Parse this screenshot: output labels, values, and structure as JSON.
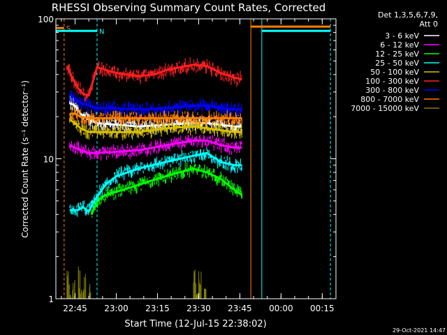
{
  "chart_data": {
    "type": "line",
    "title": "RHESSI Observing Summary Count Rates, Corrected",
    "xlabel": "Start Time (12-Jul-15 22:38:02)",
    "ylabel": "Corrected Count Rate (s⁻¹ detector⁻¹)",
    "yscale": "log",
    "ylim": [
      1,
      100
    ],
    "xlim_minutes": [
      0,
      102
    ],
    "x_ticks": [
      {
        "label": "22:45",
        "t": 7
      },
      {
        "label": "23:00",
        "t": 22
      },
      {
        "label": "23:15",
        "t": 37
      },
      {
        "label": "23:30",
        "t": 52
      },
      {
        "label": "23:45",
        "t": 67
      },
      {
        "label": "00:00",
        "t": 82
      },
      {
        "label": "00:15",
        "t": 97
      }
    ],
    "y_ticks": [
      {
        "label": "1",
        "v": 1
      },
      {
        "label": "10",
        "v": 10
      },
      {
        "label": "100",
        "v": 100
      }
    ],
    "legend": {
      "placement": "right",
      "header": [
        "Det 1,3,5,6,7,9,",
        "Att 0"
      ],
      "entries": [
        {
          "name": "3 - 6 keV",
          "color": "#ffffff"
        },
        {
          "name": "6 - 12 keV",
          "color": "#ff00ff"
        },
        {
          "name": "12 - 25 keV",
          "color": "#00ff00"
        },
        {
          "name": "25 - 50 keV",
          "color": "#00ffff"
        },
        {
          "name": "50 - 100 keV",
          "color": "#d8c000"
        },
        {
          "name": "100 - 300 keV",
          "color": "#ff2020"
        },
        {
          "name": "300 - 800 keV",
          "color": "#0000ff"
        },
        {
          "name": "800 - 7000 keV",
          "color": "#ff8000"
        },
        {
          "name": "7000 - 15000 keV",
          "color": "#808000"
        }
      ]
    },
    "series": [
      {
        "name": "3 - 6 keV",
        "color": "#ffffff",
        "x": [
          5,
          7,
          9,
          12,
          15,
          22,
          30,
          40,
          50,
          55,
          60,
          65,
          67.8
        ],
        "y": [
          25,
          24,
          21,
          19,
          18,
          17.5,
          17,
          17.5,
          18,
          18,
          17.5,
          17,
          17
        ]
      },
      {
        "name": "6 - 12 keV",
        "color": "#ff00ff",
        "x": [
          5,
          7,
          9,
          12,
          15,
          22,
          30,
          40,
          50,
          55,
          60,
          65,
          67.8
        ],
        "y": [
          12.5,
          12,
          11.5,
          11,
          11,
          11.2,
          11.5,
          12.5,
          13.5,
          13.5,
          12.5,
          12,
          12
        ]
      },
      {
        "name": "12 - 25 keV",
        "color": "#00ff00",
        "x": [
          13,
          15,
          18,
          22,
          30,
          35,
          40,
          45,
          50,
          55,
          60,
          65,
          67.8
        ],
        "y": [
          4,
          5,
          5.5,
          5.8,
          6.5,
          7,
          7.5,
          8,
          8.5,
          8,
          7.2,
          6,
          5.5
        ]
      },
      {
        "name": "25 - 50 keV",
        "color": "#00ffff",
        "x": [
          5,
          8,
          10,
          12,
          14,
          18,
          22,
          30,
          40,
          50,
          55,
          60,
          65,
          67.8
        ],
        "y": [
          4.3,
          4.3,
          4.5,
          4.2,
          5,
          6.5,
          7.5,
          8.5,
          9.5,
          10.5,
          11,
          9.5,
          9,
          9
        ]
      },
      {
        "name": "50 - 100 keV",
        "color": "#d8c000",
        "x": [
          5,
          7,
          9,
          12,
          15,
          22,
          30,
          40,
          50,
          55,
          60,
          65,
          67.8
        ],
        "y": [
          19,
          18,
          16.5,
          15.5,
          15.5,
          15.5,
          15.5,
          16.5,
          17,
          16.5,
          16,
          15.5,
          15.5
        ]
      },
      {
        "name": "100 - 300 keV",
        "color": "#ff2020",
        "x": [
          4,
          6,
          8,
          10,
          12,
          15,
          22,
          30,
          36,
          40,
          45,
          50,
          55,
          60,
          65,
          67.8
        ],
        "y": [
          46,
          38,
          32,
          29,
          28.5,
          45,
          41,
          39,
          40,
          43,
          45,
          47,
          46,
          41,
          38,
          37
        ]
      },
      {
        "name": "300 - 800 keV",
        "color": "#0000ff",
        "x": [
          5,
          7,
          9,
          12,
          15,
          22,
          30,
          40,
          50,
          55,
          60,
          65,
          67.8
        ],
        "y": [
          29,
          27,
          25,
          24,
          23,
          23,
          22.5,
          23,
          24,
          24,
          23,
          22.5,
          22.5
        ]
      },
      {
        "name": "800 - 7000 keV",
        "color": "#ff8000",
        "x": [
          5,
          7,
          9,
          12,
          15,
          22,
          30,
          40,
          50,
          55,
          60,
          65,
          67.8
        ],
        "y": [
          21,
          21,
          20,
          19.5,
          19.5,
          19.5,
          19.5,
          19.5,
          19.5,
          19.5,
          19.5,
          19.5,
          19.5
        ]
      },
      {
        "name": "7000 - 15000 keV",
        "color": "#808000",
        "x": [
          4,
          5,
          6,
          7,
          8,
          9,
          10,
          11,
          12,
          50,
          51,
          52,
          53,
          54
        ],
        "y": [
          1.6,
          1.1,
          1.5,
          1.0,
          1.7,
          1.2,
          1.6,
          1.0,
          1.3,
          1.7,
          1.1,
          1.6,
          1.0,
          1.4
        ]
      }
    ],
    "markers": [
      {
        "label": "S",
        "color": "#ff8000",
        "y": 86,
        "t_start": 0,
        "t_end": 3
      },
      {
        "label": "N",
        "color": "#00ffff",
        "y": 82,
        "t_start": 0,
        "t_end": 15
      }
    ],
    "flags": [
      {
        "color": "#ff8000",
        "y": 88,
        "t_start": 71,
        "t_end": 100
      },
      {
        "color": "#00ffff",
        "y": 82,
        "t_start": 75,
        "t_end": 100
      }
    ],
    "vlines": [
      {
        "t": 0,
        "color": "#00ffff",
        "style": "solid"
      },
      {
        "t": 3,
        "color": "#ff8000",
        "style": "dashed"
      },
      {
        "t": 15,
        "color": "#00ffff",
        "style": "dashed"
      },
      {
        "t": 71,
        "color": "#ff8000",
        "style": "solid"
      },
      {
        "t": 75,
        "color": "#00ffff",
        "style": "solid"
      },
      {
        "t": 100,
        "color": "#00ffff",
        "style": "dashed"
      }
    ],
    "footer_date": "29-Oct-2021 14:47"
  }
}
